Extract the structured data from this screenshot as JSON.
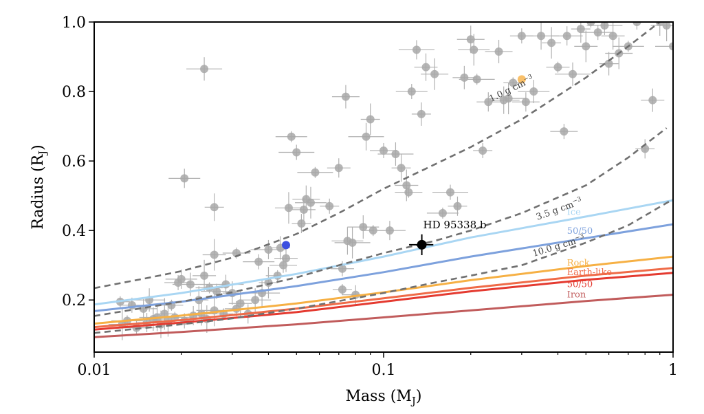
{
  "chart_data": {
    "type": "scatter",
    "xlabel": "Mass (M",
    "xlabel_sub": "J",
    "ylabel": "Radius (R",
    "ylabel_sub": "J",
    "xscale": "log",
    "xlim": [
      0.01,
      1.0
    ],
    "ylim": [
      0.05,
      1.0
    ],
    "grid": false,
    "x_ticks": [
      {
        "value": 0.01,
        "label": "0.01"
      },
      {
        "value": 0.1,
        "label": "0.1"
      },
      {
        "value": 1,
        "label": "1"
      }
    ],
    "y_ticks": [
      {
        "value": 0.2,
        "label": "0.2"
      },
      {
        "value": 0.4,
        "label": "0.4"
      },
      {
        "value": 0.6,
        "label": "0.6"
      },
      {
        "value": 0.8,
        "label": "0.8"
      },
      {
        "value": 1.0,
        "label": "1.0"
      }
    ],
    "density_curves": [
      {
        "label": "1.0 g cm",
        "exp": "−3",
        "points": [
          [
            0.01,
            0.234
          ],
          [
            0.015,
            0.262
          ],
          [
            0.02,
            0.283
          ],
          [
            0.03,
            0.322
          ],
          [
            0.05,
            0.39
          ],
          [
            0.07,
            0.45
          ],
          [
            0.1,
            0.52
          ],
          [
            0.15,
            0.59
          ],
          [
            0.2,
            0.64
          ],
          [
            0.3,
            0.72
          ],
          [
            0.5,
            0.84
          ],
          [
            0.7,
            0.93
          ],
          [
            0.9,
            1.0
          ]
        ],
        "label_at": [
          0.235,
          0.77
        ],
        "label_angle": -26
      },
      {
        "label": "3.5 g cm",
        "exp": "−3",
        "points": [
          [
            0.01,
            0.154
          ],
          [
            0.02,
            0.195
          ],
          [
            0.03,
            0.222
          ],
          [
            0.05,
            0.265
          ],
          [
            0.07,
            0.3
          ],
          [
            0.1,
            0.335
          ],
          [
            0.15,
            0.37
          ],
          [
            0.2,
            0.4
          ],
          [
            0.3,
            0.45
          ],
          [
            0.5,
            0.53
          ],
          [
            0.7,
            0.61
          ],
          [
            0.95,
            0.695
          ]
        ],
        "label_at": [
          0.34,
          0.43
        ],
        "label_angle": -20
      },
      {
        "label": "10.0 g cm",
        "exp": "−3",
        "points": [
          [
            0.01,
            0.105
          ],
          [
            0.02,
            0.13
          ],
          [
            0.03,
            0.147
          ],
          [
            0.05,
            0.175
          ],
          [
            0.1,
            0.22
          ],
          [
            0.15,
            0.25
          ],
          [
            0.2,
            0.27
          ],
          [
            0.3,
            0.3
          ],
          [
            0.5,
            0.365
          ],
          [
            0.7,
            0.415
          ],
          [
            1.0,
            0.49
          ]
        ],
        "label_at": [
          0.33,
          0.325
        ],
        "label_angle": -17
      }
    ],
    "composition_curves": [
      {
        "name": "Ice",
        "color": "#a9d6f3",
        "points": [
          [
            0.01,
            0.187
          ],
          [
            0.02,
            0.22
          ],
          [
            0.05,
            0.275
          ],
          [
            0.1,
            0.325
          ],
          [
            0.2,
            0.38
          ],
          [
            0.5,
            0.44
          ],
          [
            1.0,
            0.487
          ]
        ],
        "label_at": [
          0.43,
          0.445
        ]
      },
      {
        "name": "50/50",
        "color": "#7da1dd",
        "points": [
          [
            0.01,
            0.168
          ],
          [
            0.02,
            0.195
          ],
          [
            0.05,
            0.24
          ],
          [
            0.1,
            0.28
          ],
          [
            0.2,
            0.325
          ],
          [
            0.5,
            0.378
          ],
          [
            1.0,
            0.418
          ]
        ],
        "label_at": [
          0.43,
          0.39
        ]
      },
      {
        "name": "Rock",
        "color": "#f6b044",
        "points": [
          [
            0.01,
            0.132
          ],
          [
            0.02,
            0.155
          ],
          [
            0.05,
            0.19
          ],
          [
            0.1,
            0.222
          ],
          [
            0.2,
            0.257
          ],
          [
            0.5,
            0.298
          ],
          [
            1.0,
            0.325
          ]
        ],
        "label_at": [
          0.43,
          0.298
        ]
      },
      {
        "name": "Earth-like",
        "color": "#ef6a47",
        "points": [
          [
            0.01,
            0.122
          ],
          [
            0.02,
            0.142
          ],
          [
            0.05,
            0.175
          ],
          [
            0.1,
            0.205
          ],
          [
            0.2,
            0.235
          ],
          [
            0.5,
            0.27
          ],
          [
            1.0,
            0.292
          ]
        ],
        "label_at": [
          0.43,
          0.272
        ]
      },
      {
        "name": "50/50",
        "color": "#e43a30",
        "points": [
          [
            0.01,
            0.115
          ],
          [
            0.02,
            0.135
          ],
          [
            0.05,
            0.165
          ],
          [
            0.1,
            0.195
          ],
          [
            0.2,
            0.225
          ],
          [
            0.5,
            0.258
          ],
          [
            1.0,
            0.278
          ]
        ],
        "label_at": [
          0.43,
          0.237
        ]
      },
      {
        "name": "Iron",
        "color": "#c15c5c",
        "points": [
          [
            0.01,
            0.093
          ],
          [
            0.02,
            0.108
          ],
          [
            0.05,
            0.13
          ],
          [
            0.1,
            0.15
          ],
          [
            0.2,
            0.17
          ],
          [
            0.5,
            0.197
          ],
          [
            1.0,
            0.215
          ]
        ],
        "label_at": [
          0.43,
          0.207
        ]
      }
    ],
    "known_planets": [
      [
        0.0123,
        0.195
      ],
      [
        0.0135,
        0.185
      ],
      [
        0.0148,
        0.175
      ],
      [
        0.0155,
        0.2
      ],
      [
        0.0165,
        0.15
      ],
      [
        0.0175,
        0.16
      ],
      [
        0.0185,
        0.185
      ],
      [
        0.0195,
        0.25
      ],
      [
        0.02,
        0.26
      ],
      [
        0.0215,
        0.245
      ],
      [
        0.023,
        0.2
      ],
      [
        0.024,
        0.27
      ],
      [
        0.025,
        0.235
      ],
      [
        0.0265,
        0.225
      ],
      [
        0.0285,
        0.245
      ],
      [
        0.03,
        0.22
      ],
      [
        0.032,
        0.19
      ],
      [
        0.0125,
        0.13
      ],
      [
        0.013,
        0.14
      ],
      [
        0.014,
        0.12
      ],
      [
        0.0152,
        0.135
      ],
      [
        0.016,
        0.145
      ],
      [
        0.017,
        0.13
      ],
      [
        0.018,
        0.14
      ],
      [
        0.019,
        0.15
      ],
      [
        0.0205,
        0.14
      ],
      [
        0.022,
        0.155
      ],
      [
        0.0235,
        0.16
      ],
      [
        0.0245,
        0.145
      ],
      [
        0.026,
        0.17
      ],
      [
        0.028,
        0.16
      ],
      [
        0.031,
        0.175
      ],
      [
        0.034,
        0.16
      ],
      [
        0.036,
        0.2
      ],
      [
        0.038,
        0.22
      ],
      [
        0.04,
        0.25
      ],
      [
        0.043,
        0.27
      ],
      [
        0.045,
        0.3
      ],
      [
        0.0205,
        0.55
      ],
      [
        0.024,
        0.865
      ],
      [
        0.026,
        0.467
      ],
      [
        0.026,
        0.33
      ],
      [
        0.031,
        0.335
      ],
      [
        0.037,
        0.31
      ],
      [
        0.04,
        0.345
      ],
      [
        0.044,
        0.35
      ],
      [
        0.046,
        0.32
      ],
      [
        0.047,
        0.465
      ],
      [
        0.048,
        0.67
      ],
      [
        0.05,
        0.625
      ],
      [
        0.052,
        0.42
      ],
      [
        0.053,
        0.46
      ],
      [
        0.054,
        0.49
      ],
      [
        0.056,
        0.48
      ],
      [
        0.058,
        0.567
      ],
      [
        0.065,
        0.47
      ],
      [
        0.07,
        0.58
      ],
      [
        0.074,
        0.785
      ],
      [
        0.075,
        0.37
      ],
      [
        0.078,
        0.365
      ],
      [
        0.072,
        0.23
      ],
      [
        0.072,
        0.29
      ],
      [
        0.08,
        0.215
      ],
      [
        0.085,
        0.41
      ],
      [
        0.087,
        0.67
      ],
      [
        0.09,
        0.72
      ],
      [
        0.092,
        0.4
      ],
      [
        0.1,
        0.63
      ],
      [
        0.105,
        0.4
      ],
      [
        0.11,
        0.62
      ],
      [
        0.115,
        0.58
      ],
      [
        0.12,
        0.53
      ],
      [
        0.122,
        0.51
      ],
      [
        0.125,
        0.8
      ],
      [
        0.13,
        0.92
      ],
      [
        0.135,
        0.735
      ],
      [
        0.14,
        0.87
      ],
      [
        0.15,
        0.85
      ],
      [
        0.16,
        0.45
      ],
      [
        0.17,
        0.51
      ],
      [
        0.18,
        0.47
      ],
      [
        0.19,
        0.84
      ],
      [
        0.2,
        0.95
      ],
      [
        0.205,
        0.92
      ],
      [
        0.21,
        0.835
      ],
      [
        0.22,
        0.63
      ],
      [
        0.23,
        0.77
      ],
      [
        0.25,
        0.915
      ],
      [
        0.26,
        0.775
      ],
      [
        0.27,
        0.78
      ],
      [
        0.28,
        0.825
      ],
      [
        0.3,
        0.96
      ],
      [
        0.31,
        0.77
      ],
      [
        0.33,
        0.8
      ],
      [
        0.35,
        0.96
      ],
      [
        0.38,
        0.94
      ],
      [
        0.4,
        0.87
      ],
      [
        0.42,
        0.685
      ],
      [
        0.43,
        0.96
      ],
      [
        0.45,
        0.85
      ],
      [
        0.48,
        0.98
      ],
      [
        0.5,
        0.93
      ],
      [
        0.52,
        1.0
      ],
      [
        0.55,
        0.97
      ],
      [
        0.58,
        0.99
      ],
      [
        0.6,
        0.88
      ],
      [
        0.62,
        0.96
      ],
      [
        0.65,
        0.91
      ],
      [
        0.7,
        0.93
      ],
      [
        0.75,
        1.0
      ],
      [
        0.8,
        0.635
      ],
      [
        0.85,
        0.775
      ],
      [
        0.9,
        1.0
      ],
      [
        0.95,
        0.99
      ],
      [
        1.0,
        0.93
      ]
    ],
    "highlighted_points": [
      {
        "x": 0.046,
        "y": 0.358,
        "color": "#3b4fe0"
      },
      {
        "x": 0.3,
        "y": 0.835,
        "color": "#f9c06a"
      }
    ],
    "target_planet": {
      "name": "HD 95338 b",
      "x": 0.1355,
      "y": 0.359,
      "xerr": 0.013,
      "yerr": 0.03,
      "color": "#000000"
    }
  }
}
